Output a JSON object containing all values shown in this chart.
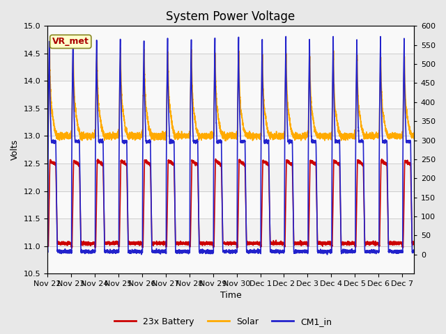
{
  "title": "System Power Voltage",
  "xlabel": "Time",
  "ylabel_left": "Volts",
  "ylim_left": [
    10.5,
    15.0
  ],
  "ylim_right": [
    -50,
    600
  ],
  "yticks_left": [
    10.5,
    11.0,
    11.5,
    12.0,
    12.5,
    13.0,
    13.5,
    14.0,
    14.5,
    15.0
  ],
  "yticks_right": [
    0,
    50,
    100,
    150,
    200,
    250,
    300,
    350,
    400,
    450,
    500,
    550,
    600
  ],
  "bg_color": "#e8e8e8",
  "plot_bg_color": "#f2f2f2",
  "line_colors": {
    "battery": "#cc0000",
    "solar": "#ffaa00",
    "cm1": "#2222cc"
  },
  "legend_labels": [
    "23x Battery",
    "Solar",
    "CM1_in"
  ],
  "vr_met_label": "VR_met",
  "vr_box_color": "#ffffcc",
  "vr_border_color": "#888822",
  "vr_text_color": "#aa0000",
  "grid_color": "#cccccc",
  "title_fontsize": 12,
  "label_fontsize": 9,
  "tick_fontsize": 8,
  "legend_fontsize": 9,
  "line_width": 1.2,
  "day_labels": [
    "Nov 22",
    "Nov 23",
    "Nov 24",
    "Nov 25",
    "Nov 26",
    "Nov 27",
    "Nov 28",
    "Nov 29",
    "Nov 30",
    "Dec 1",
    "Dec 2",
    "Dec 3",
    "Dec 4",
    "Dec 5",
    "Dec 6",
    "Dec 7"
  ],
  "total_hours": 372,
  "shaded_band_alpha": 0.18
}
